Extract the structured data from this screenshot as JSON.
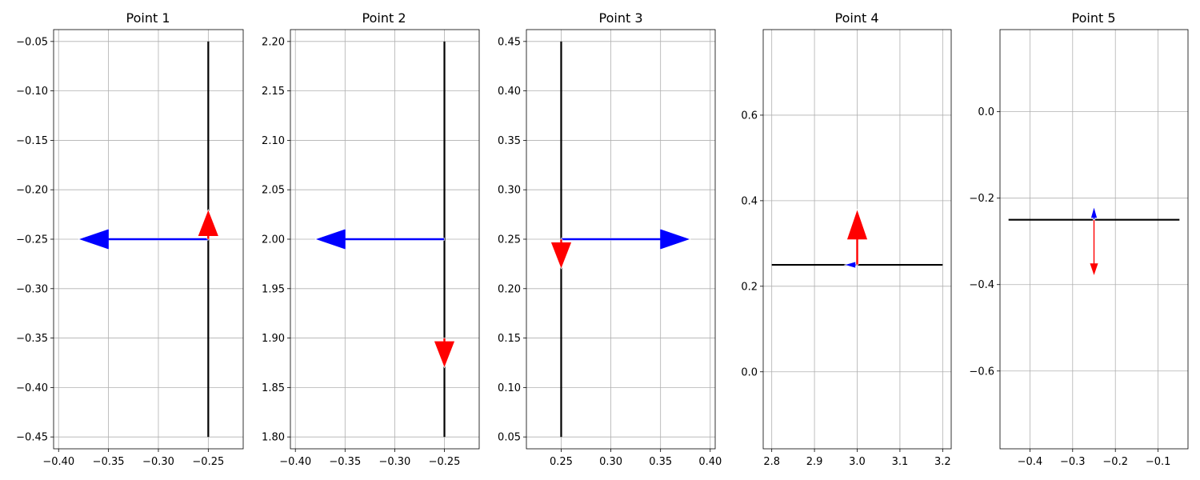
{
  "colors": {
    "horizontal_arrow": "#0000ff",
    "vertical_arrow": "#ff0000",
    "segment": "#000000",
    "grid": "#b0b0b0",
    "background": "#ffffff"
  },
  "chart_data": [
    {
      "type": "quiver",
      "title": "Point 1",
      "grid": true,
      "xlim": [
        -0.405,
        -0.215
      ],
      "ylim": [
        -0.462,
        -0.038
      ],
      "xticks": [
        -0.4,
        -0.35,
        -0.3,
        -0.25
      ],
      "xtick_labels": [
        "−0.40",
        "−0.35",
        "−0.30",
        "−0.25"
      ],
      "yticks": [
        -0.05,
        -0.1,
        -0.15,
        -0.2,
        -0.25,
        -0.3,
        -0.35,
        -0.4,
        -0.45
      ],
      "ytick_labels": [
        "−0.05",
        "−0.10",
        "−0.15",
        "−0.20",
        "−0.25",
        "−0.30",
        "−0.35",
        "−0.40",
        "−0.45"
      ],
      "segment": {
        "x": [
          -0.25,
          -0.25
        ],
        "y": [
          -0.45,
          -0.05
        ]
      },
      "arrows": [
        {
          "role": "horizontal",
          "x": -0.25,
          "y": -0.25,
          "dx": -0.13,
          "dy": 0
        },
        {
          "role": "vertical",
          "x": -0.25,
          "y": -0.25,
          "dx": 0,
          "dy": 0.03
        }
      ]
    },
    {
      "type": "quiver",
      "title": "Point 2",
      "grid": true,
      "xlim": [
        -0.405,
        -0.215
      ],
      "ylim": [
        1.788,
        2.212
      ],
      "xticks": [
        -0.4,
        -0.35,
        -0.3,
        -0.25
      ],
      "xtick_labels": [
        "−0.40",
        "−0.35",
        "−0.30",
        "−0.25"
      ],
      "yticks": [
        2.2,
        2.15,
        2.1,
        2.05,
        2.0,
        1.95,
        1.9,
        1.85,
        1.8
      ],
      "ytick_labels": [
        "2.20",
        "2.15",
        "2.10",
        "2.05",
        "2.00",
        "1.95",
        "1.90",
        "1.85",
        "1.80"
      ],
      "segment": {
        "x": [
          -0.25,
          -0.25
        ],
        "y": [
          1.8,
          2.2
        ]
      },
      "arrows": [
        {
          "role": "horizontal",
          "x": -0.25,
          "y": 2.0,
          "dx": -0.13,
          "dy": 0
        },
        {
          "role": "vertical",
          "x": -0.25,
          "y": 1.9,
          "dx": 0,
          "dy": -0.03
        }
      ]
    },
    {
      "type": "quiver",
      "title": "Point 3",
      "grid": true,
      "xlim": [
        0.215,
        0.405
      ],
      "ylim": [
        0.038,
        0.462
      ],
      "xticks": [
        0.25,
        0.3,
        0.35,
        0.4
      ],
      "xtick_labels": [
        "0.25",
        "0.30",
        "0.35",
        "0.40"
      ],
      "yticks": [
        0.45,
        0.4,
        0.35,
        0.3,
        0.25,
        0.2,
        0.15,
        0.1,
        0.05
      ],
      "ytick_labels": [
        "0.45",
        "0.40",
        "0.35",
        "0.30",
        "0.25",
        "0.20",
        "0.15",
        "0.10",
        "0.05"
      ],
      "segment": {
        "x": [
          0.25,
          0.25
        ],
        "y": [
          0.05,
          0.45
        ]
      },
      "arrows": [
        {
          "role": "horizontal",
          "x": 0.25,
          "y": 0.25,
          "dx": 0.13,
          "dy": 0
        },
        {
          "role": "vertical",
          "x": 0.25,
          "y": 0.25,
          "dx": 0,
          "dy": -0.03
        }
      ]
    },
    {
      "type": "quiver",
      "title": "Point 4",
      "grid": true,
      "xlim": [
        2.78,
        3.22
      ],
      "ylim": [
        -0.18,
        0.8
      ],
      "xticks": [
        2.8,
        2.9,
        3.0,
        3.1,
        3.2
      ],
      "xtick_labels": [
        "2.8",
        "2.9",
        "3.0",
        "3.1",
        "3.2"
      ],
      "yticks": [
        0.6,
        0.4,
        0.2,
        0.0
      ],
      "ytick_labels": [
        "0.6",
        "0.4",
        "0.2",
        "0.0"
      ],
      "segment": {
        "x": [
          2.8,
          3.2
        ],
        "y": [
          0.25,
          0.25
        ]
      },
      "arrows": [
        {
          "role": "horizontal",
          "x": 3.0,
          "y": 0.25,
          "dx": -0.03,
          "dy": 0
        },
        {
          "role": "vertical",
          "x": 3.0,
          "y": 0.25,
          "dx": 0,
          "dy": 0.13
        }
      ]
    },
    {
      "type": "quiver",
      "title": "Point 5",
      "grid": true,
      "xlim": [
        -0.47,
        -0.03
      ],
      "ylim": [
        -0.78,
        0.19
      ],
      "xticks": [
        -0.4,
        -0.3,
        -0.2,
        -0.1
      ],
      "xtick_labels": [
        "−0.4",
        "−0.3",
        "−0.2",
        "−0.1"
      ],
      "yticks": [
        0.0,
        -0.2,
        -0.4,
        -0.6
      ],
      "ytick_labels": [
        "0.0",
        "−0.2",
        "−0.4",
        "−0.6"
      ],
      "segment": {
        "x": [
          -0.45,
          -0.05
        ],
        "y": [
          -0.25,
          -0.25
        ]
      },
      "arrows": [
        {
          "role": "horizontal",
          "x": -0.25,
          "y": -0.25,
          "dx": 0,
          "dy": 0.03
        },
        {
          "role": "vertical",
          "x": -0.25,
          "y": -0.25,
          "dx": 0,
          "dy": -0.13
        }
      ]
    }
  ]
}
